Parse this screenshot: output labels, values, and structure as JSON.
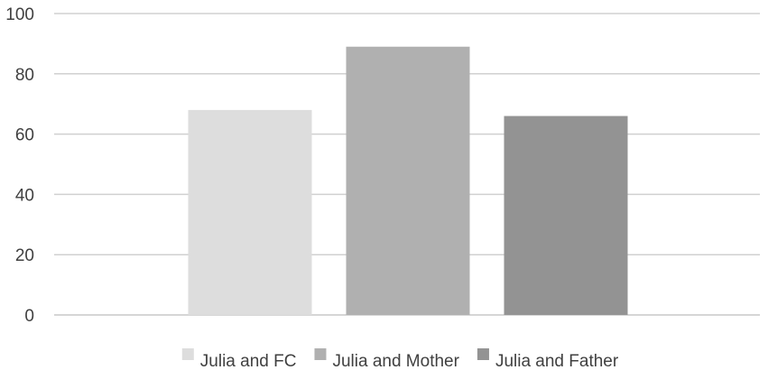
{
  "chart_data": {
    "type": "bar",
    "title": "",
    "xlabel": "",
    "ylabel": "",
    "categories": [
      ""
    ],
    "series": [
      {
        "name": "Julia and FC",
        "values": [
          68
        ],
        "color": "#dddddd"
      },
      {
        "name": "Julia and Mother",
        "values": [
          89
        ],
        "color": "#b0b0b0"
      },
      {
        "name": "Julia and Father",
        "values": [
          66
        ],
        "color": "#939393"
      }
    ],
    "ylim": [
      0,
      100
    ],
    "yticks": [
      0,
      20,
      40,
      60,
      80,
      100
    ],
    "grid": true,
    "legend": "bottom"
  }
}
